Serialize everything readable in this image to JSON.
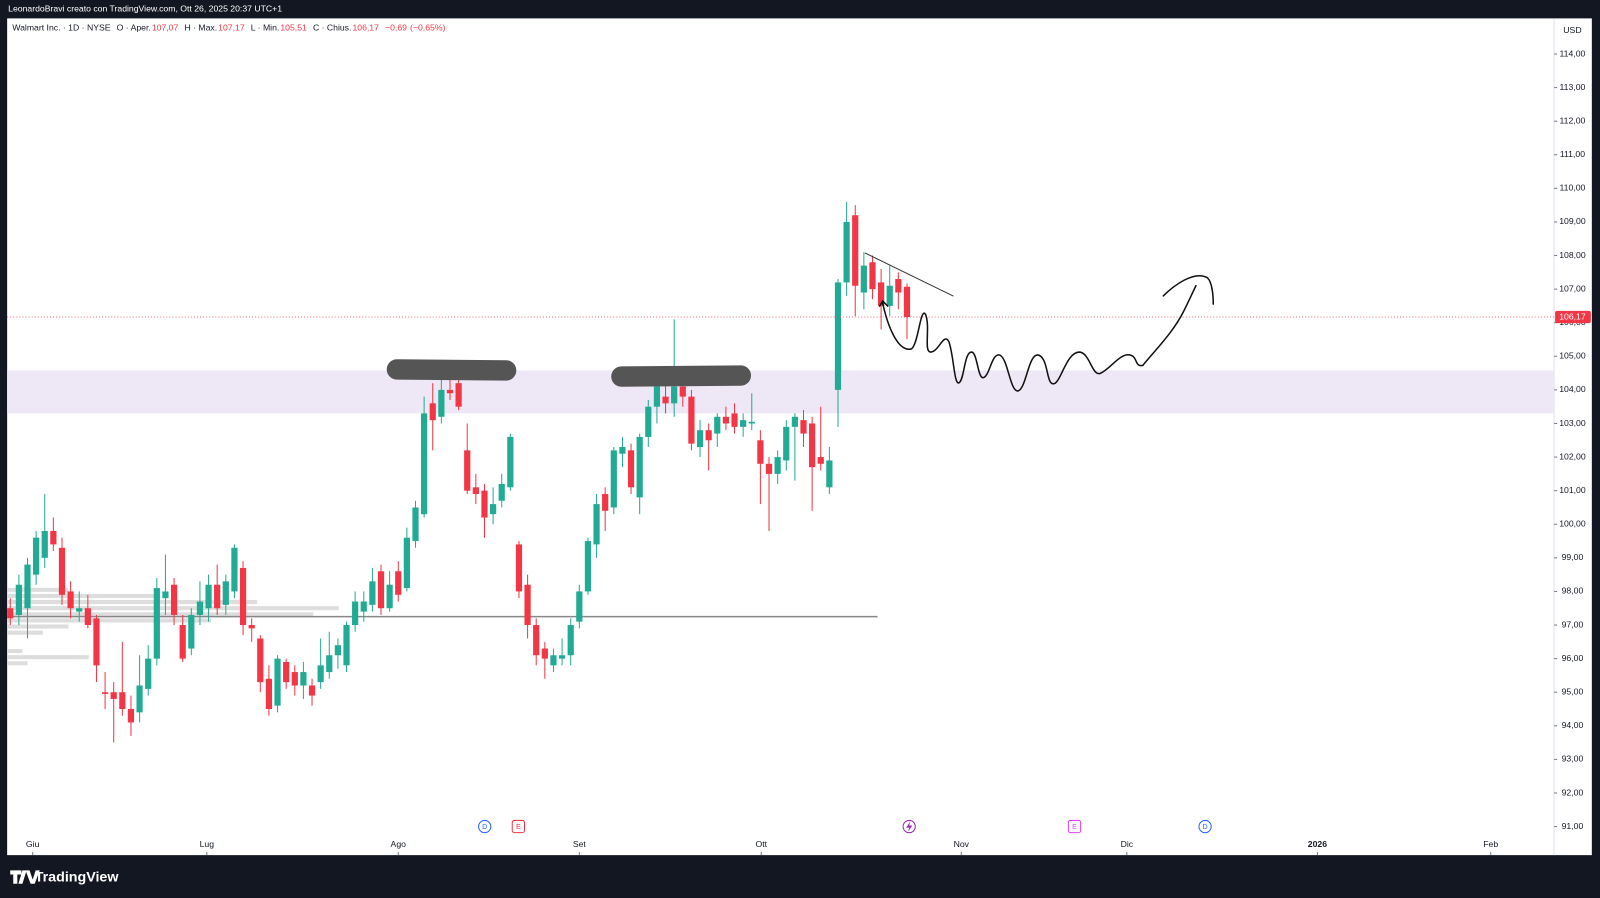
{
  "header": {
    "attribution": "LeonardoBravi creato con TradingView.com, Ott 26, 2025 20:37 UTC+1"
  },
  "chart_data": {
    "type": "candlestick",
    "title": "Walmart Inc. · 1D · NYSE",
    "legend_stats": [
      {
        "name": "O · Aper.",
        "value": 107.07,
        "label": "107,07"
      },
      {
        "name": "H · Max.",
        "value": 107.17,
        "label": "107,17"
      },
      {
        "name": "L · Min.",
        "value": 105.51,
        "label": "105,51"
      },
      {
        "name": "C · Chius.",
        "value": 106.17,
        "label": "106,17"
      }
    ],
    "change": {
      "value": -0.69,
      "label": "−0,69"
    },
    "change_percent": {
      "value": -0.65,
      "label": "(−0,65%)"
    },
    "currency": "USD",
    "open": [
      97.5,
      97.3,
      97.5,
      98.5,
      99,
      99.8,
      99.3,
      98,
      97.4,
      97.5,
      97.2,
      95.0,
      95,
      95,
      94.5,
      94.4,
      95.1,
      96,
      97.8,
      98.2,
      97,
      96.3,
      97.3,
      97.5,
      98.2,
      97.6,
      98,
      98.7,
      97,
      96.6,
      95.4,
      94.6,
      95.9,
      95.6,
      95.2,
      95.2,
      95.3,
      95.6,
      96.1,
      95.8,
      97,
      97.4,
      97.6,
      98.6,
      97.5,
      98.6,
      98.1,
      99.5,
      100.3,
      103.6,
      103.2,
      104,
      104.2,
      102.2,
      101.1,
      101,
      100.3,
      100.7,
      101.1,
      99.4,
      98.2,
      97,
      96.3,
      95.8,
      96,
      96.1,
      97.1,
      98,
      99.4,
      100.9,
      100.5,
      102.1,
      102.2,
      100.8,
      102.6,
      103.5,
      103.8,
      103.6,
      104.1,
      103.8,
      102.3,
      102.8,
      102.7,
      103.2,
      103.3,
      102.9,
      103,
      102.5,
      101.8,
      101.5,
      101.9,
      102.9,
      103.1,
      103,
      102,
      101.1,
      104,
      107.2,
      109.2,
      106.9,
      107.8,
      107.2,
      106.5,
      107.3,
      107.07
    ],
    "high": [
      97.8,
      98.5,
      99,
      99.8,
      100.9,
      100.2,
      99.6,
      98.3,
      98,
      97.9,
      97.3,
      95.6,
      95.3,
      96.5,
      94.9,
      96.1,
      96.4,
      98.4,
      99.1,
      98.4,
      97.3,
      97.5,
      98.3,
      98.5,
      98.8,
      98.5,
      99.4,
      98.9,
      97.2,
      96.7,
      95.8,
      96.1,
      96,
      95.8,
      95.9,
      95.4,
      96.6,
      96.8,
      96.6,
      97.1,
      98,
      98,
      98.7,
      98.8,
      98.6,
      98.9,
      99.9,
      100.7,
      103.8,
      104.2,
      104.4,
      104.7,
      104.4,
      103,
      101.5,
      101.2,
      101.1,
      101.5,
      102.7,
      99.5,
      98.5,
      97.2,
      96.5,
      96.3,
      96.6,
      97.2,
      98.2,
      99.6,
      100.9,
      101.1,
      102.3,
      102.6,
      102.4,
      102.7,
      103.7,
      104.4,
      104.2,
      106.1,
      104.5,
      104,
      103.1,
      103,
      103.3,
      103.5,
      103.6,
      103.3,
      103.9,
      102.8,
      102,
      102.2,
      103.1,
      103.3,
      103.4,
      103.2,
      103.5,
      102.3,
      107.3,
      109.6,
      109.5,
      108.1,
      108,
      107.6,
      107.7,
      107.5,
      107.17
    ],
    "low": [
      97,
      97,
      96.6,
      98.2,
      98.7,
      99.2,
      97.6,
      97.2,
      97.1,
      96.9,
      95.3,
      94.5,
      93.5,
      94.3,
      93.7,
      94.1,
      94.9,
      95.8,
      97.3,
      97,
      95.9,
      96.1,
      97,
      97.1,
      97.3,
      97.3,
      97.8,
      96.7,
      96.5,
      95.0,
      94.3,
      94.4,
      95.1,
      94.9,
      94.8,
      94.6,
      95.1,
      95.4,
      95.7,
      95.6,
      96.8,
      97.1,
      97.4,
      97.3,
      97.4,
      97.7,
      98,
      99.3,
      100.2,
      102.2,
      103,
      103.7,
      103.4,
      100.9,
      100.6,
      99.6,
      100,
      100.5,
      101,
      97.8,
      96.6,
      95.8,
      95.4,
      95.6,
      95.8,
      95.8,
      96.9,
      97.9,
      99,
      99.8,
      100.3,
      101.7,
      100.9,
      100.3,
      102.3,
      103,
      103.3,
      103.2,
      103.5,
      102.2,
      102,
      101.6,
      102.3,
      102.8,
      102.7,
      102.6,
      102.8,
      100.6,
      99.8,
      101.2,
      101.6,
      101.3,
      102.3,
      100.4,
      101.6,
      100.9,
      102.9,
      106.8,
      106.2,
      106.4,
      106.7,
      105.8,
      106.2,
      106.4,
      105.51
    ],
    "close": [
      97.2,
      98.2,
      98.8,
      99.6,
      99.8,
      99.4,
      97.9,
      97.5,
      97.5,
      97,
      95.8,
      94.95,
      94.8,
      94.5,
      94.1,
      95.2,
      96,
      98.1,
      98,
      97.3,
      96,
      97.3,
      97.7,
      98.2,
      97.5,
      98.3,
      99.3,
      97,
      96.9,
      95.3,
      94.5,
      96,
      95.3,
      95.2,
      95.6,
      94.9,
      95.8,
      96.1,
      96.4,
      97,
      97.7,
      97.7,
      98.3,
      97.5,
      98.2,
      97.9,
      99.6,
      100.5,
      103.3,
      103.1,
      104,
      103.9,
      103.5,
      101,
      100.9,
      100.2,
      100.6,
      101.2,
      102.6,
      98,
      97,
      96.1,
      96,
      96.1,
      96.1,
      97,
      98,
      99.5,
      100.6,
      100.4,
      102.2,
      102.3,
      101.1,
      102.6,
      103.5,
      104.1,
      103.6,
      104.1,
      103.8,
      102.4,
      102.8,
      102.5,
      103.2,
      103,
      102.9,
      103.1,
      103.05,
      101.8,
      101.5,
      102,
      102.9,
      103.2,
      102.7,
      101.7,
      101.8,
      101.9,
      107.2,
      109,
      107.1,
      107.7,
      107,
      106.5,
      107.1,
      106.9,
      106.17
    ],
    "up_color": "#22ab94",
    "down_color": "#f23645",
    "xlim": [
      -0.36,
      179.05
    ],
    "xticks": [
      {
        "value": 2.6,
        "label": "Giu"
      },
      {
        "value": 22.8,
        "label": "Lug"
      },
      {
        "value": 45.0,
        "label": "Ago"
      },
      {
        "value": 66.0,
        "label": "Set"
      },
      {
        "value": 87.1,
        "label": "Ott"
      },
      {
        "value": 110.3,
        "label": "Nov"
      },
      {
        "value": 129.5,
        "label": "Dic"
      },
      {
        "value": 151.6,
        "label": "2026"
      },
      {
        "value": 171.7,
        "label": "Feb"
      }
    ],
    "ylim": [
      90.15,
      115.06
    ],
    "yticks": [
      {
        "value": 91,
        "label": "91,00"
      },
      {
        "value": 92,
        "label": "92,00"
      },
      {
        "value": 93,
        "label": "93,00"
      },
      {
        "value": 94,
        "label": "94,00"
      },
      {
        "value": 95,
        "label": "95,00"
      },
      {
        "value": 96,
        "label": "96,00"
      },
      {
        "value": 97,
        "label": "97,00"
      },
      {
        "value": 98,
        "label": "98,00"
      },
      {
        "value": 99,
        "label": "99,00"
      },
      {
        "value": 100,
        "label": "100,00"
      },
      {
        "value": 101,
        "label": "101,00"
      },
      {
        "value": 102,
        "label": "102,00"
      },
      {
        "value": 103,
        "label": "103,00"
      },
      {
        "value": 104,
        "label": "104,00"
      },
      {
        "value": 105,
        "label": "105,00"
      },
      {
        "value": 106,
        "label": "106,00"
      },
      {
        "value": 107,
        "label": "107,00"
      },
      {
        "value": 108,
        "label": "108,00"
      },
      {
        "value": 109,
        "label": "109,00"
      },
      {
        "value": 110,
        "label": "110,00"
      },
      {
        "value": 111,
        "label": "111,00"
      },
      {
        "value": 112,
        "label": "112,00"
      },
      {
        "value": 113,
        "label": "113,00"
      },
      {
        "value": 114,
        "label": "114,00"
      }
    ],
    "last_price": {
      "value": 106.17,
      "label": "106,17"
    },
    "zone": [
      103.3,
      104.58
    ],
    "zone_color": "#ede7f6",
    "support_line": 97.25,
    "events": [
      "D",
      "E",
      "E",
      "D"
    ]
  },
  "footer": {
    "brand": "TradingView"
  }
}
